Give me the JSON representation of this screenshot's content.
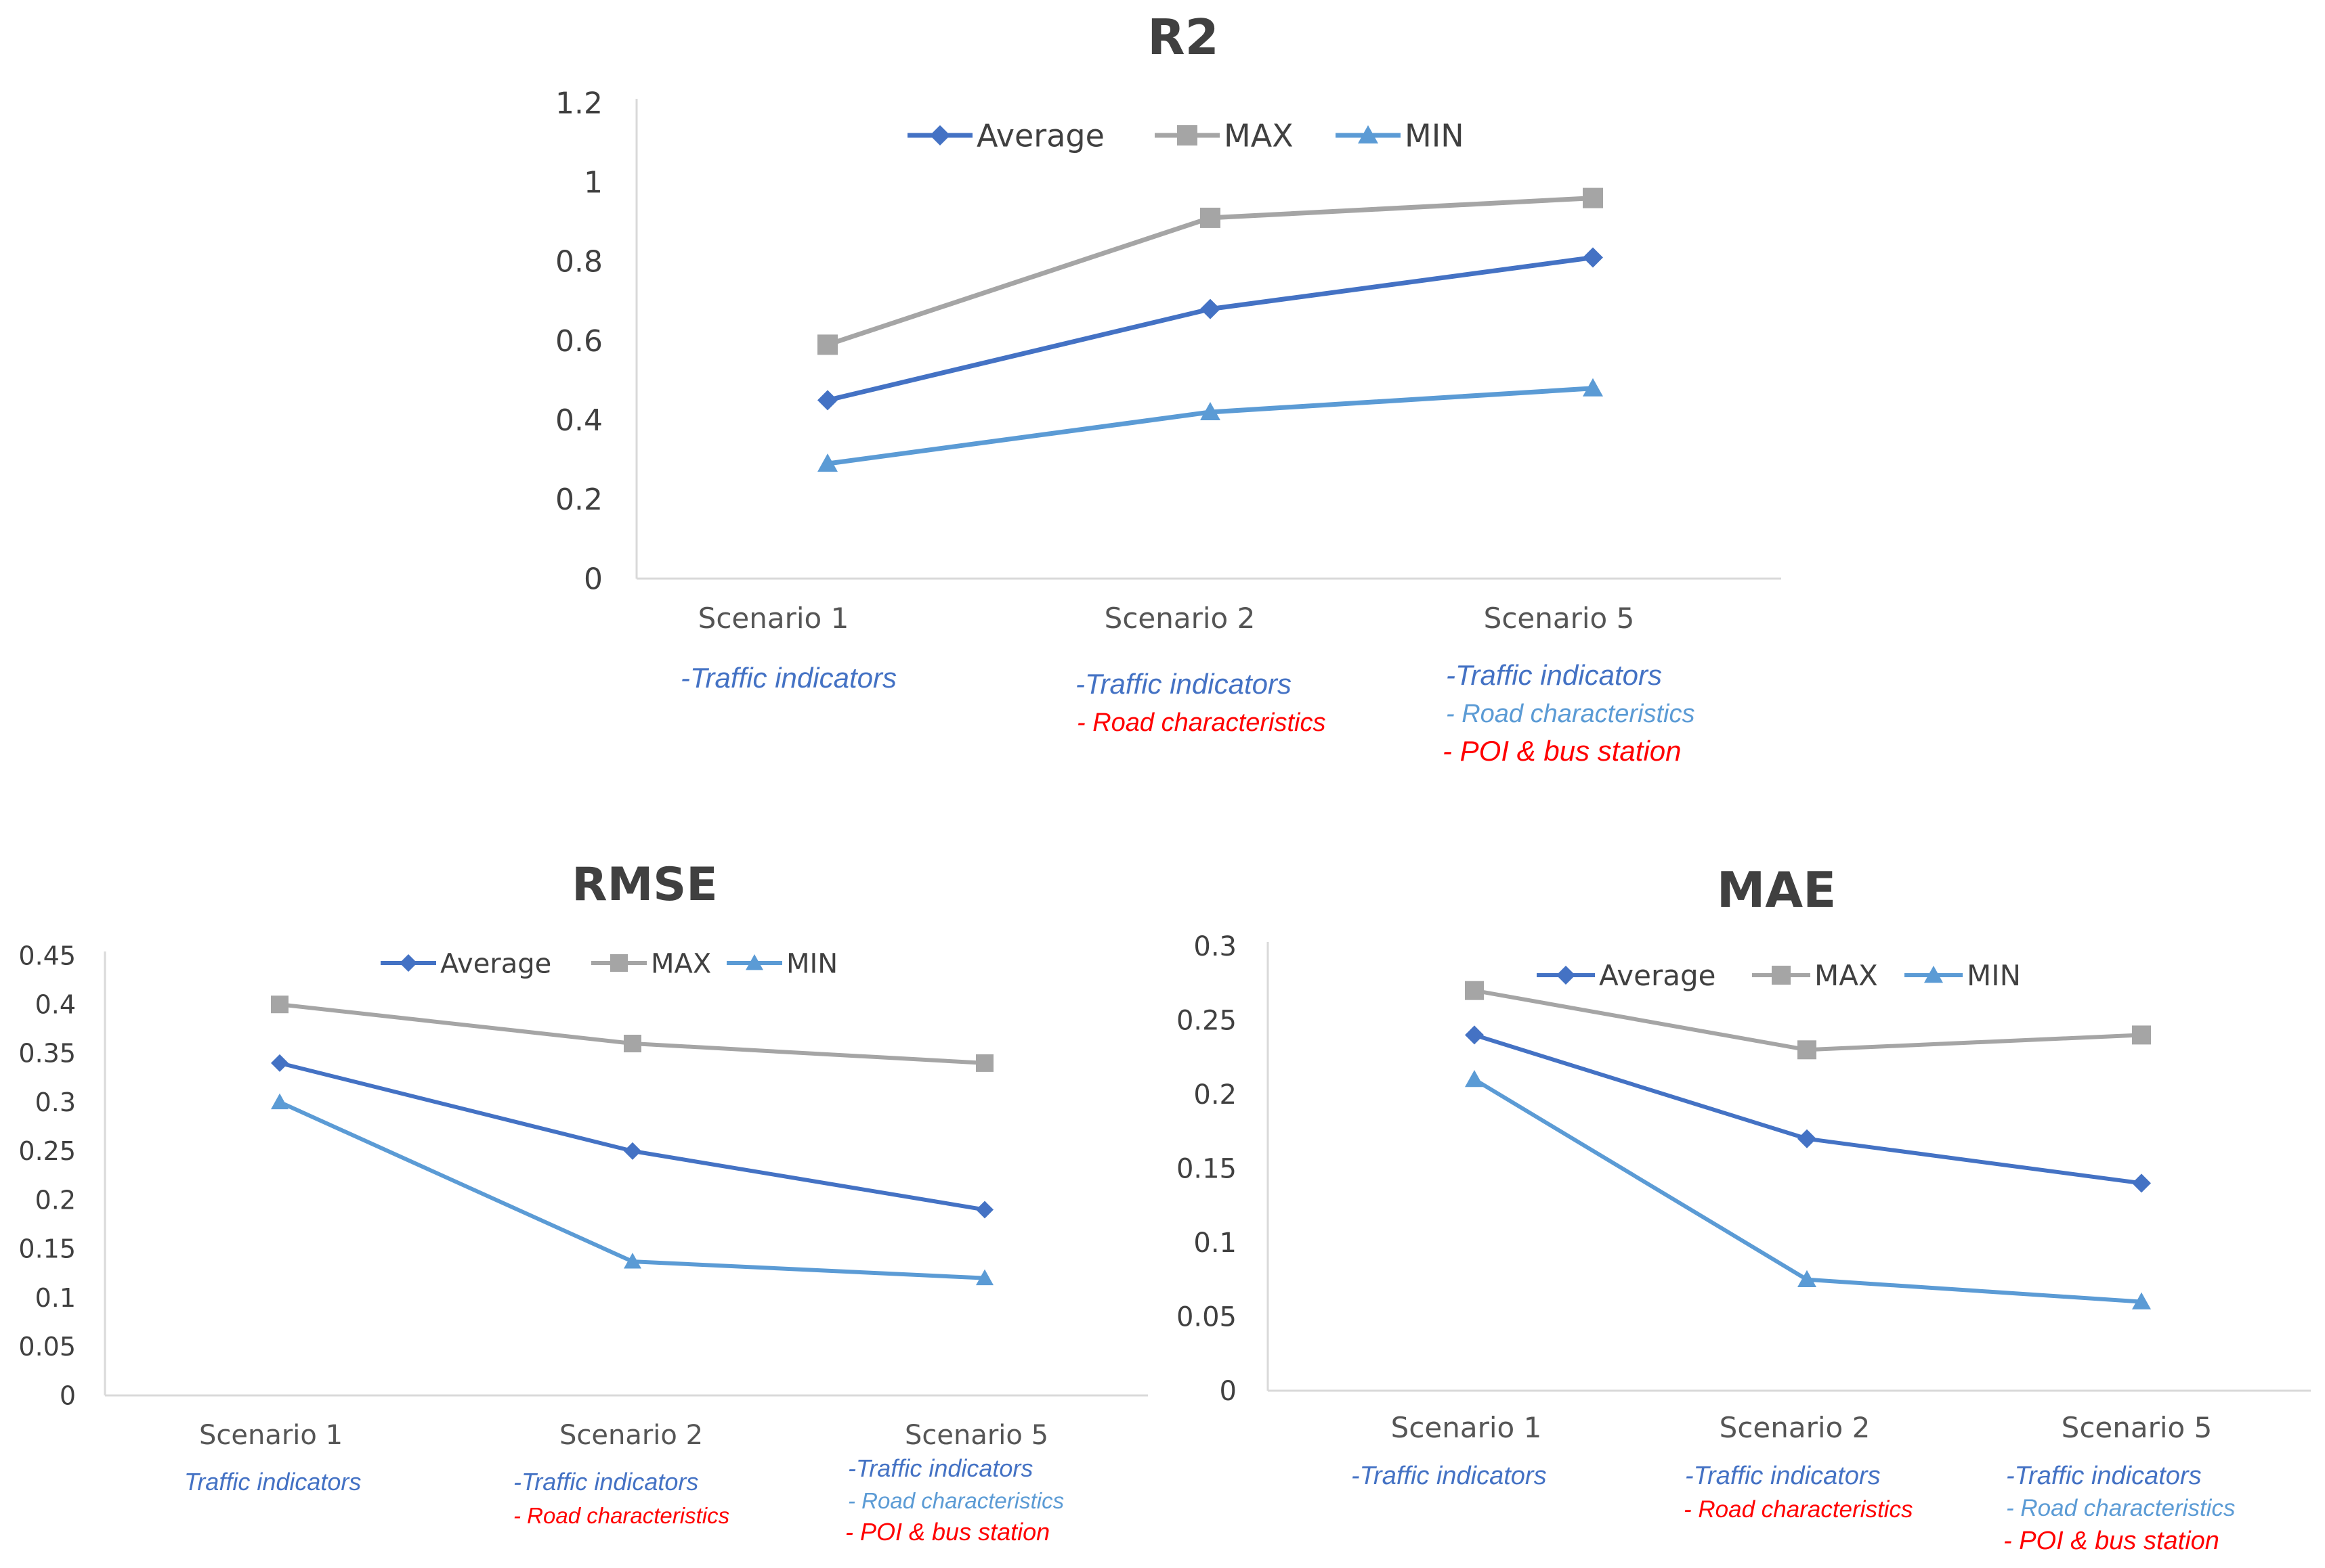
{
  "colors": {
    "average": "#4472C4",
    "max": "#A5A5A5",
    "min": "#5B9BD5",
    "axis": "#D9D9D9",
    "text": "#404040",
    "ann_blue": "#4472C4",
    "ann_red": "#FF0000"
  },
  "chart_data": [
    {
      "id": "r2",
      "type": "line",
      "title": "R2",
      "categories": [
        "Scenario 1",
        "Scenario 2",
        "Scenario 5"
      ],
      "ylim": [
        0,
        1.2
      ],
      "yticks": [
        "0",
        "0.2",
        "0.4",
        "0.6",
        "0.8",
        "1",
        "1.2"
      ],
      "legend_position": "top",
      "series": [
        {
          "name": "Average",
          "marker": "diamond",
          "values": [
            0.45,
            0.68,
            0.81
          ]
        },
        {
          "name": "MAX",
          "marker": "square",
          "values": [
            0.59,
            0.91,
            0.96
          ]
        },
        {
          "name": "MIN",
          "marker": "triangle",
          "values": [
            0.29,
            0.42,
            0.48
          ]
        }
      ],
      "annotations": [
        [
          {
            "text": "-Traffic indicators",
            "color": "blue"
          }
        ],
        [
          {
            "text": "-Traffic indicators",
            "color": "blue"
          },
          {
            "text": "- Road characteristics",
            "color": "red"
          }
        ],
        [
          {
            "text": "-Traffic indicators",
            "color": "blue"
          },
          {
            "text": "- Road characteristics",
            "color": "lightblue"
          },
          {
            "text": "- POI & bus station",
            "color": "red"
          }
        ]
      ]
    },
    {
      "id": "rmse",
      "type": "line",
      "title": "RMSE",
      "categories": [
        "Scenario 1",
        "Scenario 2",
        "Scenario 5"
      ],
      "ylim": [
        0,
        0.45
      ],
      "yticks": [
        "0",
        "0.05",
        "0.1",
        "0.15",
        "0.2",
        "0.25",
        "0.3",
        "0.35",
        "0.4",
        "0.45"
      ],
      "legend_position": "top",
      "series": [
        {
          "name": "Average",
          "marker": "diamond",
          "values": [
            0.34,
            0.25,
            0.19
          ]
        },
        {
          "name": "MAX",
          "marker": "square",
          "values": [
            0.4,
            0.36,
            0.34
          ]
        },
        {
          "name": "MIN",
          "marker": "triangle",
          "values": [
            0.3,
            0.137,
            0.12
          ]
        }
      ],
      "annotations": [
        [
          {
            "text": "Traffic indicators",
            "color": "blue"
          }
        ],
        [
          {
            "text": "-Traffic indicators",
            "color": "blue"
          },
          {
            "text": "- Road characteristics",
            "color": "red"
          }
        ],
        [
          {
            "text": "-Traffic indicators",
            "color": "blue"
          },
          {
            "text": "- Road characteristics",
            "color": "lightblue"
          },
          {
            "text": "- POI & bus station",
            "color": "red"
          }
        ]
      ]
    },
    {
      "id": "mae",
      "type": "line",
      "title": "MAE",
      "categories": [
        "Scenario 1",
        "Scenario 2",
        "Scenario 5"
      ],
      "ylim": [
        0,
        0.3
      ],
      "yticks": [
        "0",
        "0.05",
        "0.1",
        "0.15",
        "0.2",
        "0.25",
        "0.3"
      ],
      "legend_position": "top",
      "series": [
        {
          "name": "Average",
          "marker": "diamond",
          "values": [
            0.24,
            0.17,
            0.14
          ]
        },
        {
          "name": "MAX",
          "marker": "square",
          "values": [
            0.27,
            0.23,
            0.24
          ]
        },
        {
          "name": "MIN",
          "marker": "triangle",
          "values": [
            0.21,
            0.075,
            0.06
          ]
        }
      ],
      "annotations": [
        [
          {
            "text": "-Traffic indicators",
            "color": "blue"
          }
        ],
        [
          {
            "text": "-Traffic indicators",
            "color": "blue"
          },
          {
            "text": "- Road characteristics",
            "color": "red"
          }
        ],
        [
          {
            "text": "-Traffic indicators",
            "color": "blue"
          },
          {
            "text": "- Road characteristics",
            "color": "lightblue"
          },
          {
            "text": "- POI & bus station",
            "color": "red"
          }
        ]
      ]
    }
  ]
}
